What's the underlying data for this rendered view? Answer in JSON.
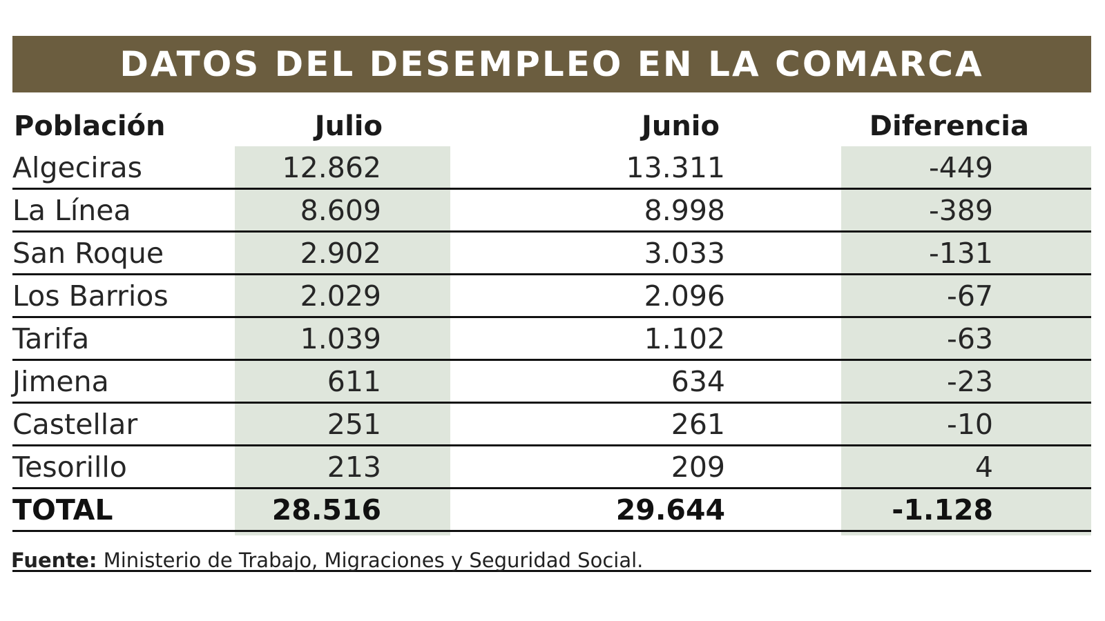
{
  "title": "DATOS DEL DESEMPLEO EN LA COMARCA",
  "colors": {
    "banner": "#6b5d3f",
    "highlight_column": "#dfe6dc",
    "text": "#1a1a1a"
  },
  "headers": {
    "poblacion": "Población",
    "julio": "Julio",
    "junio": "Junio",
    "diferencia": "Diferencia"
  },
  "rows": [
    {
      "poblacion": "Algeciras",
      "julio": "12.862",
      "junio": "13.311",
      "diferencia": "-449"
    },
    {
      "poblacion": "La Línea",
      "julio": "8.609",
      "junio": "8.998",
      "diferencia": "-389"
    },
    {
      "poblacion": "San Roque",
      "julio": "2.902",
      "junio": "3.033",
      "diferencia": "-131"
    },
    {
      "poblacion": "Los Barrios",
      "julio": "2.029",
      "junio": "2.096",
      "diferencia": "-67"
    },
    {
      "poblacion": "Tarifa",
      "julio": "1.039",
      "junio": "1.102",
      "diferencia": "-63"
    },
    {
      "poblacion": "Jimena",
      "julio": "611",
      "junio": "634",
      "diferencia": "-23"
    },
    {
      "poblacion": "Castellar",
      "julio": "251",
      "junio": "261",
      "diferencia": "-10"
    },
    {
      "poblacion": "Tesorillo",
      "julio": "213",
      "junio": "209",
      "diferencia": "4"
    }
  ],
  "total": {
    "poblacion": "TOTAL",
    "julio": "28.516",
    "junio": "29.644",
    "diferencia": "-1.128"
  },
  "footer": {
    "label": "Fuente:",
    "text": "Ministerio de Trabajo, Migraciones y Seguridad Social."
  },
  "chart_data": {
    "type": "table",
    "title": "DATOS DEL DESEMPLEO EN LA COMARCA",
    "columns": [
      "Población",
      "Julio",
      "Junio",
      "Diferencia"
    ],
    "rows": [
      [
        "Algeciras",
        12862,
        13311,
        -449
      ],
      [
        "La Línea",
        8609,
        8998,
        -389
      ],
      [
        "San Roque",
        2902,
        3033,
        -131
      ],
      [
        "Los Barrios",
        2029,
        2096,
        -67
      ],
      [
        "Tarifa",
        1039,
        1102,
        -63
      ],
      [
        "Jimena",
        611,
        634,
        -23
      ],
      [
        "Castellar",
        251,
        261,
        -10
      ],
      [
        "Tesorillo",
        213,
        209,
        4
      ]
    ],
    "total": [
      "TOTAL",
      28516,
      29644,
      -1128
    ],
    "source": "Fuente: Ministerio de Trabajo, Migraciones y Seguridad Social."
  }
}
